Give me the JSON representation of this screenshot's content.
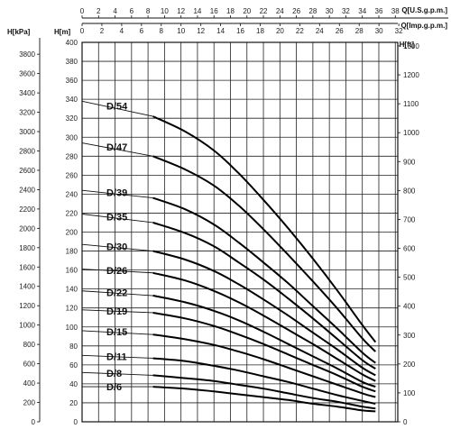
{
  "chart_data": {
    "type": "line",
    "title": "",
    "axes": {
      "top_gpm": {
        "label": "Q[U.S.g.p.m.]",
        "ticks": [
          0,
          2,
          4,
          6,
          8,
          10,
          12,
          14,
          16,
          18,
          20,
          22,
          24,
          26,
          28,
          30,
          32,
          34,
          36,
          38
        ],
        "max": 38.3
      },
      "top_igpm": {
        "label": "Q[Imp.g.p.m.]",
        "ticks": [
          0,
          2,
          4,
          6,
          8,
          10,
          12,
          14,
          16,
          18,
          20,
          22,
          24,
          26,
          28,
          30,
          32
        ],
        "max": 31.9
      },
      "left_kpa": {
        "label": "H[kPa]",
        "ticks": [
          0,
          200,
          400,
          600,
          800,
          1000,
          1200,
          1400,
          1600,
          1800,
          2000,
          2200,
          2400,
          2600,
          2800,
          3000,
          3200,
          3400,
          3600,
          3800
        ]
      },
      "left_m": {
        "label": "H[m]",
        "ticks": [
          0,
          20,
          40,
          60,
          80,
          100,
          120,
          140,
          160,
          180,
          200,
          220,
          240,
          260,
          280,
          300,
          320,
          340,
          360,
          380,
          400
        ],
        "ylim": [
          0,
          400
        ]
      },
      "right_ft": {
        "label": "H[ft]",
        "ticks": [
          0,
          100,
          200,
          300,
          400,
          500,
          600,
          700,
          800,
          900,
          1000,
          1100,
          1200,
          1300
        ]
      }
    },
    "grid": true,
    "series": [
      {
        "name": "D/54",
        "label_y": 338,
        "x": [
          8.6,
          12.5,
          16,
          19,
          22,
          25,
          28,
          31,
          34,
          35.6
        ],
        "y": [
          322,
          306,
          286,
          262,
          234,
          204,
          172,
          138,
          102,
          84
        ]
      },
      {
        "name": "D/47",
        "label_y": 294,
        "x": [
          8.6,
          12.5,
          16,
          19,
          22,
          25,
          28,
          31,
          34,
          35.6
        ],
        "y": [
          280,
          266,
          249,
          228,
          203,
          176,
          148,
          119,
          88,
          74
        ]
      },
      {
        "name": "D/39",
        "label_y": 244,
        "x": [
          8.6,
          12.5,
          16,
          19,
          22,
          25,
          28,
          31,
          34,
          35.6
        ],
        "y": [
          236,
          224,
          208,
          189,
          168,
          146,
          122,
          98,
          73,
          62
        ]
      },
      {
        "name": "D/35",
        "label_y": 219,
        "x": [
          8.6,
          12.5,
          16,
          19,
          22,
          25,
          28,
          31,
          34,
          35.6
        ],
        "y": [
          210,
          199,
          185,
          168,
          150,
          130,
          109,
          87,
          65,
          56
        ]
      },
      {
        "name": "D/30",
        "label_y": 187,
        "x": [
          8.6,
          12.5,
          16,
          19,
          22,
          25,
          28,
          31,
          34,
          35.6
        ],
        "y": [
          180,
          171,
          159,
          145,
          129,
          112,
          94,
          76,
          57,
          49
        ]
      },
      {
        "name": "D/26",
        "label_y": 161,
        "x": [
          8.6,
          12.5,
          16,
          19,
          22,
          25,
          28,
          31,
          34,
          35.6
        ],
        "y": [
          157,
          149,
          138,
          126,
          112,
          97,
          82,
          66,
          50,
          43
        ]
      },
      {
        "name": "D/22",
        "label_y": 138,
        "x": [
          8.6,
          12.5,
          16,
          19,
          22,
          25,
          28,
          31,
          34,
          35.6
        ],
        "y": [
          133,
          126,
          117,
          107,
          95,
          82,
          69,
          56,
          42,
          37
        ]
      },
      {
        "name": "D/19",
        "label_y": 118,
        "x": [
          8.6,
          12.5,
          16,
          19,
          22,
          25,
          28,
          31,
          34,
          35.6
        ],
        "y": [
          115,
          109,
          101,
          92,
          82,
          71,
          60,
          49,
          37,
          32
        ]
      },
      {
        "name": "D/15",
        "label_y": 96,
        "x": [
          8.6,
          12.5,
          16,
          19,
          22,
          25,
          28,
          31,
          34,
          35.6
        ],
        "y": [
          92,
          87,
          81,
          74,
          66,
          57,
          48,
          39,
          30,
          26
        ]
      },
      {
        "name": "D/11",
        "label_y": 70,
        "x": [
          8.6,
          12.5,
          16,
          19,
          22,
          25,
          28,
          31,
          34,
          35.6
        ],
        "y": [
          67,
          64,
          59,
          54,
          48,
          42,
          35,
          28,
          22,
          19
        ]
      },
      {
        "name": "D/8",
        "label_y": 52,
        "x": [
          8.6,
          12.5,
          16,
          19,
          22,
          25,
          28,
          31,
          34,
          35.6
        ],
        "y": [
          49,
          46,
          43,
          39,
          35,
          30,
          25,
          21,
          16,
          14
        ]
      },
      {
        "name": "D/6",
        "label_y": 37,
        "x": [
          8.6,
          12.5,
          16,
          19,
          22,
          25,
          28,
          31,
          34,
          35.6
        ],
        "y": [
          37,
          35,
          32,
          29,
          26,
          23,
          19,
          16,
          12,
          11
        ]
      }
    ]
  }
}
